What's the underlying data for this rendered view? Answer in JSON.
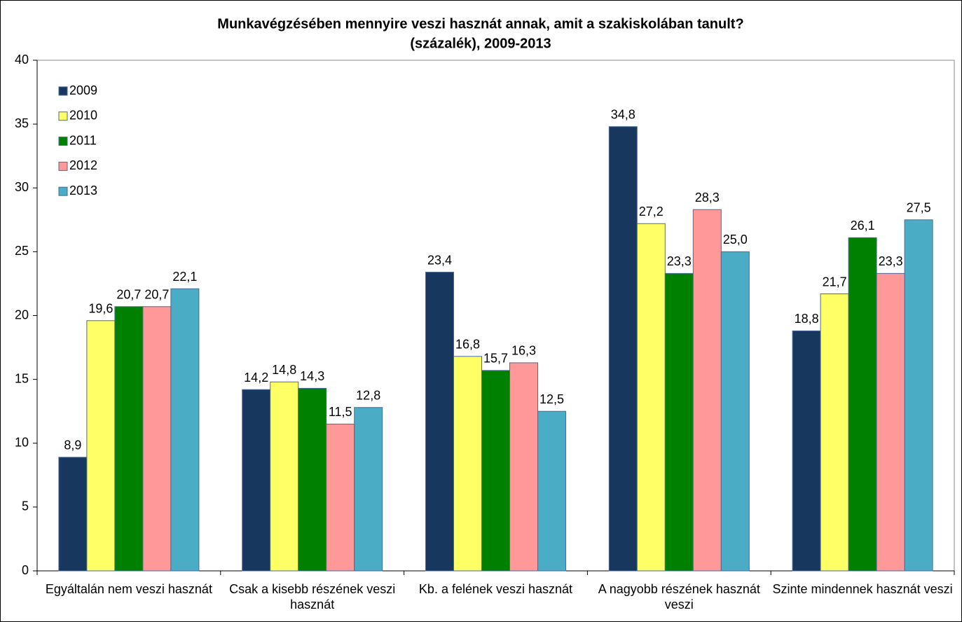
{
  "chart_data": {
    "type": "bar",
    "title": "Munkavégzésében mennyire veszi hasznát annak, amit a szakiskolában tanult?",
    "subtitle": "(százalék), 2009-2013",
    "categories": [
      "Egyáltalán nem veszi hasznát",
      "Csak a kisebb részének veszi hasznát",
      "Kb. a felének veszi hasznát",
      "A nagyobb részének hasznát veszi",
      "Szinte mindennek hasznát veszi"
    ],
    "series": [
      {
        "name": "2009",
        "color": "#17375e",
        "values": [
          8.9,
          14.2,
          23.4,
          34.8,
          18.8
        ],
        "value_labels": [
          "8,9",
          "14,2",
          "23,4",
          "34,8",
          "18,8"
        ]
      },
      {
        "name": "2010",
        "color": "#ffff66",
        "values": [
          19.6,
          14.8,
          16.8,
          27.2,
          21.7
        ],
        "value_labels": [
          "19,6",
          "14,8",
          "16,8",
          "27,2",
          "21,7"
        ]
      },
      {
        "name": "2011",
        "color": "#008000",
        "values": [
          20.7,
          14.3,
          15.7,
          23.3,
          26.1
        ],
        "value_labels": [
          "20,7",
          "14,3",
          "15,7",
          "23,3",
          "26,1"
        ]
      },
      {
        "name": "2012",
        "color": "#ff9999",
        "values": [
          20.7,
          11.5,
          16.3,
          28.3,
          23.3
        ],
        "value_labels": [
          "20,7",
          "11,5",
          "16,3",
          "28,3",
          "23,3"
        ]
      },
      {
        "name": "2013",
        "color": "#4bacc6",
        "values": [
          22.1,
          12.8,
          12.5,
          25.0,
          27.5
        ],
        "value_labels": [
          "22,1",
          "12,8",
          "12,5",
          "25,0",
          "27,5"
        ]
      }
    ],
    "ylim": [
      0,
      40
    ],
    "yticks": [
      0,
      5,
      10,
      15,
      20,
      25,
      30,
      35,
      40
    ],
    "grid": false,
    "legend": "top-left"
  }
}
